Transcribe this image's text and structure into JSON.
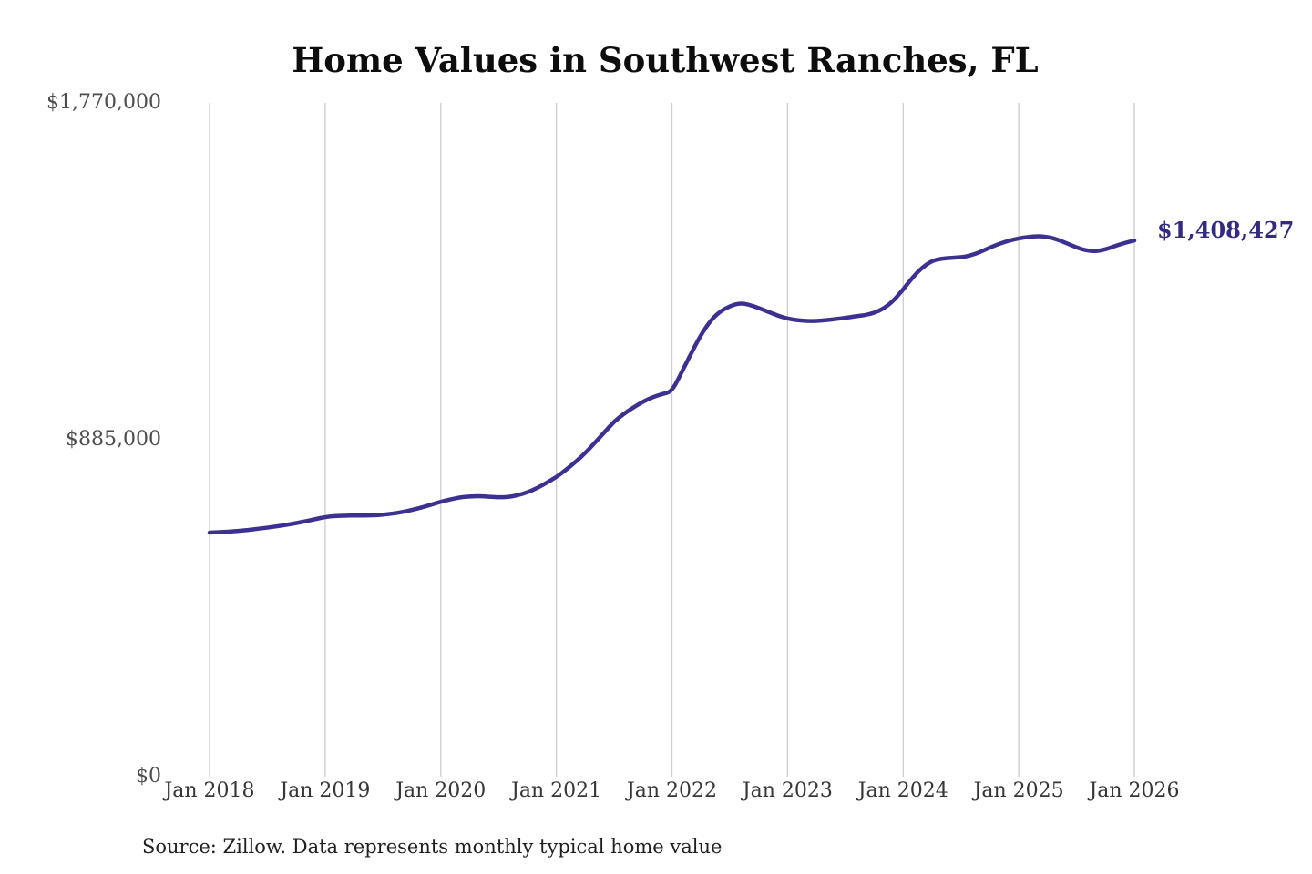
{
  "chart": {
    "title": "Home Values in Southwest Ranches, FL",
    "end_label": "$1,408,427",
    "source": "Source: Zillow. Data represents monthly typical home value"
  },
  "chart_data": {
    "type": "line",
    "title": "Home Values in Southwest Ranches, FL",
    "series_name": "Monthly typical home value",
    "x_start": "Jan 2018",
    "x_end": "Jan 2026",
    "frequency": "monthly",
    "x_tick_labels": [
      "Jan 2018",
      "Jan 2019",
      "Jan 2020",
      "Jan 2021",
      "Jan 2022",
      "Jan 2023",
      "Jan 2024",
      "Jan 2025",
      "Jan 2026"
    ],
    "y_tick_values": [
      0,
      885000,
      1770000
    ],
    "y_tick_labels": [
      "$0",
      "$885,000",
      "$1,770,000"
    ],
    "ylim": [
      0,
      1770000
    ],
    "grid": "vertical-only",
    "legend": "none",
    "end_point_label": "$1,408,427",
    "end_point_value": 1408427,
    "colors": {
      "line": "#3c3191",
      "grid": "#cdcdcd",
      "end_label": "#322b80"
    },
    "values": [
      641000,
      642000,
      643500,
      645500,
      648000,
      651000,
      654000,
      657500,
      661500,
      666000,
      671000,
      676500,
      682000,
      684500,
      685500,
      686000,
      686000,
      686500,
      688000,
      691000,
      695000,
      700500,
      707000,
      714500,
      722000,
      728500,
      733500,
      736000,
      737000,
      735500,
      733500,
      734500,
      739000,
      747000,
      758000,
      772000,
      787000,
      806000,
      827000,
      850000,
      877000,
      905000,
      933000,
      953000,
      970000,
      985000,
      997000,
      1005000,
      1012000,
      1062000,
      1112000,
      1160000,
      1198000,
      1222000,
      1236000,
      1244000,
      1240000,
      1231000,
      1221000,
      1211000,
      1203000,
      1199000,
      1197000,
      1197000,
      1199000,
      1202000,
      1205000,
      1209000,
      1212000,
      1218000,
      1230000,
      1250000,
      1280000,
      1312000,
      1338000,
      1355000,
      1361000,
      1363000,
      1364000,
      1369000,
      1378000,
      1390000,
      1400000,
      1408000,
      1414000,
      1418000,
      1420000,
      1418000,
      1411000,
      1401000,
      1390000,
      1382000,
      1380000,
      1385000,
      1394000,
      1402000,
      1408427
    ]
  }
}
